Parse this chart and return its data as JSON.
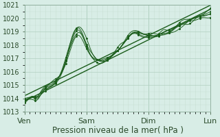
{
  "xlabel": "Pression niveau de la mer( hPa )",
  "bg_color": "#d8ede6",
  "grid_color_major": "#b0d0c0",
  "grid_color_minor": "#c8e0d4",
  "line_color": "#1a5c1a",
  "ylim": [
    1013,
    1021
  ],
  "yticks": [
    1013,
    1014,
    1015,
    1016,
    1017,
    1018,
    1019,
    1020,
    1021
  ],
  "xtick_labels": [
    "Ven",
    "Sam",
    "Dim",
    "Lun"
  ],
  "xtick_positions": [
    0,
    1,
    2,
    3
  ],
  "xlabel_fontsize": 8.5,
  "ytick_fontsize": 7,
  "xtick_fontsize": 8
}
